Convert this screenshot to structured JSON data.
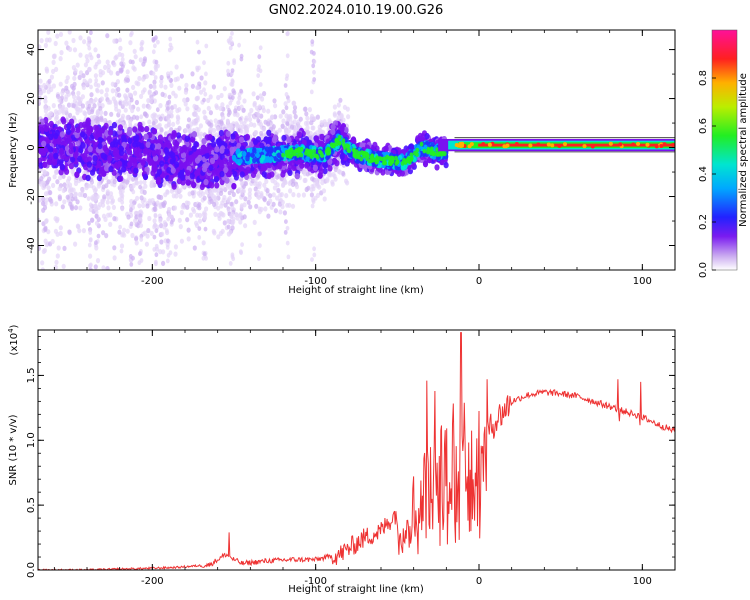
{
  "figure": {
    "title": "GN02.2024.010.19.00.G26"
  },
  "chart_data": [
    {
      "type": "heatmap",
      "title": "GN02.2024.010.19.00.G26",
      "xlabel": "Height of straight line (km)",
      "ylabel": "Frequency (Hz)",
      "xlim": [
        -270,
        120
      ],
      "ylim": [
        -50,
        48
      ],
      "xticks": [
        -200,
        -100,
        0,
        100
      ],
      "xtick_labels": [
        "-200",
        "-100",
        "0",
        "100"
      ],
      "yticks": [
        -40,
        -20,
        0,
        20,
        40
      ],
      "ytick_labels": [
        "-40",
        "-20",
        "0",
        "20",
        "40"
      ],
      "colorbar": {
        "label": "Normalized spectral amplitude",
        "range": [
          0,
          1
        ],
        "ticks": [
          0,
          0.2,
          0.4,
          0.6,
          0.8
        ],
        "tick_labels": [
          "0.0",
          "0.2",
          "0.4",
          "0.6",
          "0.8"
        ],
        "colormap": "rainbow (violet-blue-cyan-green-yellow-red-magenta)"
      },
      "ridge_frequency_hz": [
        {
          "x": -270,
          "y": 2
        },
        {
          "x": -250,
          "y": 0
        },
        {
          "x": -230,
          "y": -1
        },
        {
          "x": -210,
          "y": -2
        },
        {
          "x": -190,
          "y": -5
        },
        {
          "x": -170,
          "y": -6
        },
        {
          "x": -150,
          "y": -4
        },
        {
          "x": -130,
          "y": -3
        },
        {
          "x": -110,
          "y": -2
        },
        {
          "x": -95,
          "y": -3
        },
        {
          "x": -85,
          "y": 3
        },
        {
          "x": -75,
          "y": -3
        },
        {
          "x": -60,
          "y": -5
        },
        {
          "x": -45,
          "y": -6
        },
        {
          "x": -35,
          "y": 0
        },
        {
          "x": -25,
          "y": -2
        },
        {
          "x": -10,
          "y": 0
        },
        {
          "x": 0,
          "y": 1
        },
        {
          "x": 20,
          "y": 1
        },
        {
          "x": 50,
          "y": 1
        },
        {
          "x": 80,
          "y": 1
        },
        {
          "x": 100,
          "y": 1
        },
        {
          "x": 120,
          "y": 1
        }
      ]
    },
    {
      "type": "line",
      "xlabel": "Height of straight line (km)",
      "ylabel": "SNR (10 * v/v)",
      "y_multiplier": "(x10^4)",
      "y_multiplier_base": "(x10",
      "y_multiplier_exp": "4",
      "y_multiplier_close": ")",
      "xlim": [
        -270,
        120
      ],
      "ylim": [
        0,
        1.85
      ],
      "xticks": [
        -200,
        -100,
        0,
        100
      ],
      "xtick_labels": [
        "-200",
        "-100",
        "0",
        "100"
      ],
      "yticks": [
        0,
        0.5,
        1.0,
        1.5
      ],
      "ytick_labels": [
        "0.0",
        "0.5",
        "1.0",
        "1.5"
      ],
      "line_color": "#ee3333",
      "series": [
        {
          "x": [
            -270,
            -240,
            -210,
            -185,
            -165,
            -155,
            -150,
            -145,
            -130,
            -115,
            -100,
            -85,
            -70,
            -60,
            -50,
            -40,
            -30,
            -20,
            -15,
            -10,
            -5,
            0,
            10,
            20,
            30,
            40,
            50,
            60,
            70,
            80,
            90,
            95,
            100,
            110,
            120
          ],
          "y": [
            0.0,
            0.0,
            0.01,
            0.02,
            0.04,
            0.12,
            0.08,
            0.05,
            0.07,
            0.08,
            0.08,
            0.12,
            0.25,
            0.3,
            0.45,
            0.55,
            0.7,
            0.85,
            0.95,
            1.0,
            0.9,
            0.95,
            1.15,
            1.3,
            1.35,
            1.37,
            1.36,
            1.34,
            1.3,
            1.26,
            1.22,
            1.2,
            1.18,
            1.12,
            1.07
          ],
          "peaks": [
            {
              "x": -153,
              "y": 0.29
            },
            {
              "x": -32,
              "y": 1.46
            },
            {
              "x": -27,
              "y": 1.38
            },
            {
              "x": -11,
              "y": 1.83
            },
            {
              "x": 5,
              "y": 1.47
            },
            {
              "x": 85,
              "y": 1.47
            },
            {
              "x": 99,
              "y": 1.45
            }
          ]
        }
      ]
    }
  ]
}
